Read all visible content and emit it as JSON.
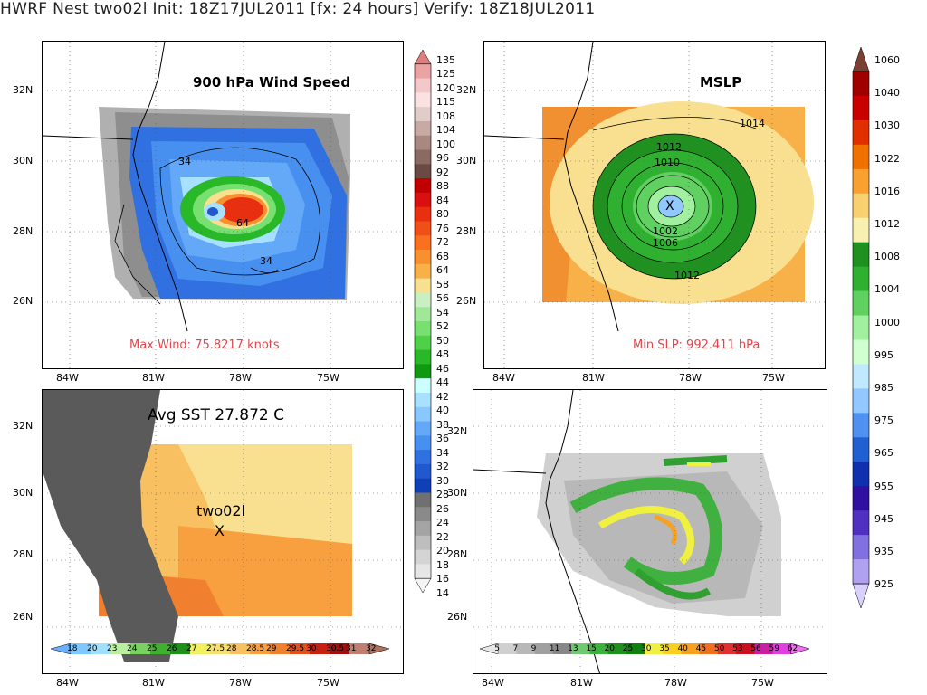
{
  "title": "HWRF Nest two02l Init: 18Z17JUL2011 [fx: 24 hours] Verify: 18Z18JUL2011",
  "panels": {
    "wind": {
      "title": "900 hPa Wind Speed",
      "footnote": "Max Wind: 75.8217 knots",
      "contour_labels": [
        "34",
        "64",
        "34"
      ]
    },
    "mslp": {
      "title": "MSLP",
      "footnote": "Min SLP: 992.411 hPa",
      "contour_labels": [
        "1014",
        "1012",
        "1010",
        "1002",
        "1006",
        "1012"
      ]
    },
    "sst": {
      "title": "Avg SST 27.872 C",
      "storm_name": "two02l",
      "storm_marker": "X"
    },
    "precip": {}
  },
  "lat_labels": [
    "32N",
    "30N",
    "28N",
    "26N"
  ],
  "lon_labels": [
    "84W",
    "81W",
    "78W",
    "75W"
  ],
  "wind_colorbar": {
    "labels": [
      "135",
      "125",
      "120",
      "115",
      "108",
      "104",
      "100",
      "96",
      "92",
      "88",
      "84",
      "80",
      "76",
      "72",
      "68",
      "64",
      "58",
      "56",
      "54",
      "52",
      "50",
      "48",
      "46",
      "44",
      "42",
      "40",
      "38",
      "36",
      "34",
      "32",
      "30",
      "28",
      "26",
      "24",
      "22",
      "20",
      "18",
      "16",
      "14"
    ],
    "colors": [
      "#e07d7d",
      "#eba2a2",
      "#f4c8c8",
      "#fbe2e2",
      "#e0ccc8",
      "#c8aaa4",
      "#a88880",
      "#8a6a62",
      "#6a4a42",
      "#c00000",
      "#d81010",
      "#e83010",
      "#f05018",
      "#f87020",
      "#f89030",
      "#f8b048",
      "#f8e090",
      "#c8f0c0",
      "#a0e898",
      "#78e070",
      "#50d048",
      "#28b828",
      "#109810",
      "#ccffff",
      "#a8e0ff",
      "#88c8ff",
      "#64a8f8",
      "#4890f0",
      "#3070e0",
      "#2058d0",
      "#1040b8",
      "#707070",
      "#8a8a8a",
      "#a4a4a4",
      "#bebebe",
      "#d4d4d4",
      "#e6e6e6",
      "#f4f4f4"
    ]
  },
  "mslp_colorbar": {
    "labels": [
      "1060",
      "1040",
      "1030",
      "1022",
      "1016",
      "1012",
      "1008",
      "1004",
      "1000",
      "995",
      "985",
      "975",
      "965",
      "955",
      "945",
      "935",
      "925"
    ],
    "colors": [
      "#7a4030",
      "#a00000",
      "#c80000",
      "#e03000",
      "#f07000",
      "#f8a030",
      "#f8d070",
      "#f8f0b0",
      "#209020",
      "#30b030",
      "#60d060",
      "#a0f0a0",
      "#d0ffd0",
      "#c0e8ff",
      "#90c8ff",
      "#5090f0",
      "#2060d0",
      "#1030b0",
      "#3010a0",
      "#5030c0",
      "#8070e0",
      "#b0a0f0",
      "#d8d0ff"
    ]
  },
  "sst_colorbar": {
    "labels": [
      "18",
      "20",
      "23",
      "24",
      "25",
      "26",
      "27",
      "27.5",
      "28",
      "28.5",
      "29",
      "29.5",
      "30",
      "30.5",
      "31",
      "32"
    ],
    "colors": [
      "#6ab0ff",
      "#7ec8ff",
      "#a0e0ff",
      "#b8f0a0",
      "#7ad060",
      "#40b030",
      "#20901c",
      "#f0f060",
      "#f8e070",
      "#f8c060",
      "#f8a040",
      "#f08030",
      "#e05020",
      "#c82010",
      "#a01010",
      "#c08070",
      "#b07060"
    ]
  },
  "precip_colorbar": {
    "labels": [
      "5",
      "7",
      "9",
      "11",
      "13",
      "15",
      "20",
      "25",
      "30",
      "35",
      "40",
      "45",
      "50",
      "53",
      "56",
      "59",
      "62"
    ],
    "colors": [
      "#e8e8e8",
      "#d0d0d0",
      "#b8b8b8",
      "#a0a0a0",
      "#888888",
      "#70c870",
      "#40b040",
      "#209020",
      "#108010",
      "#f0f040",
      "#f8d020",
      "#f8a020",
      "#f07020",
      "#e03030",
      "#c81020",
      "#c820a0",
      "#e040e0",
      "#f070f0"
    ]
  }
}
